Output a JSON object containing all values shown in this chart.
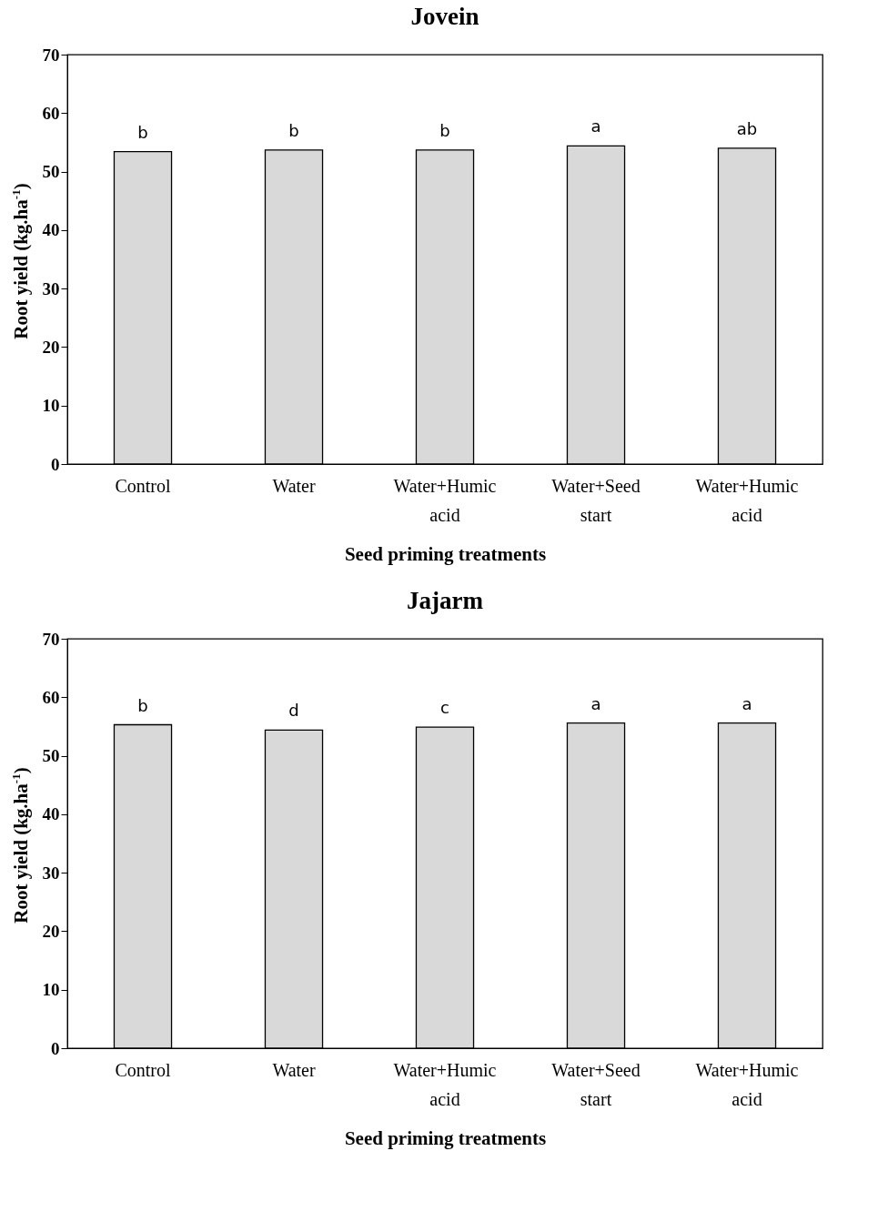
{
  "chart_data": [
    {
      "type": "bar",
      "title": "Jovein",
      "xlabel": "Seed priming treatments",
      "ylabel": "Root yield (kg.ha$^{-1}$)",
      "categories": [
        "Control",
        "Water",
        "Water+Humic acid",
        "Water+Seed start",
        "Water+Humic acid"
      ],
      "values": [
        53.4,
        53.7,
        53.7,
        54.4,
        54.0
      ],
      "value_labels": [
        "b",
        "b",
        "b",
        "a",
        "ab"
      ],
      "color": "#d9d9d9",
      "ylim": [
        0,
        70
      ],
      "yticks": [
        0,
        10,
        20,
        30,
        40,
        50,
        60,
        70
      ],
      "grid": false
    },
    {
      "type": "bar",
      "title": "Jajarm",
      "xlabel": "Seed priming treatments",
      "ylabel": "Root yield (kg.ha$^{-1}$)",
      "categories": [
        "Control",
        "Water",
        "Water+Humic acid",
        "Water+Seed start",
        "Water+Humic acid"
      ],
      "values": [
        55.3,
        54.4,
        54.9,
        55.6,
        55.6
      ],
      "value_labels": [
        "b",
        "d",
        "c",
        "a",
        "a"
      ],
      "color": "#d9d9d9",
      "ylim": [
        0,
        70
      ],
      "yticks": [
        0,
        10,
        20,
        30,
        40,
        50,
        60,
        70
      ],
      "grid": false
    }
  ]
}
